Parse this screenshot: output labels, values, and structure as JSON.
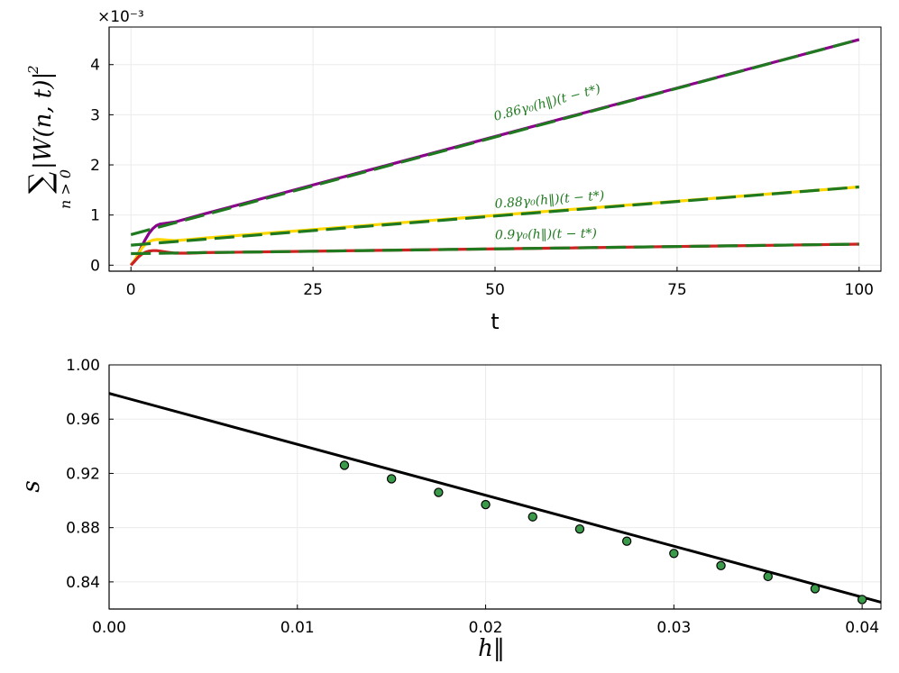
{
  "chart_data": [
    {
      "type": "line",
      "exponent_label": "×10⁻³",
      "xlabel": "t",
      "ylabel_main": "|W(n, t)|",
      "ylabel_sup": "2",
      "ylabel_sum": "∑",
      "ylabel_sub": "n > 0",
      "xlim": [
        -3,
        103
      ],
      "ylim": [
        -0.12,
        4.75
      ],
      "xticks": [
        0,
        25,
        50,
        75,
        100
      ],
      "xtick_labels": [
        "0",
        "25",
        "50",
        "75",
        "100"
      ],
      "yticks": [
        0,
        1,
        2,
        3,
        4
      ],
      "ytick_labels": [
        "0",
        "1",
        "2",
        "3",
        "4"
      ],
      "grid": true,
      "series": [
        {
          "color": "#8b008b",
          "style": "solid",
          "x": [
            0,
            0.5,
            1,
            1.5,
            2,
            2.5,
            3,
            3.5,
            4,
            5,
            6,
            8,
            10,
            100
          ],
          "y": [
            0.0,
            0.08,
            0.22,
            0.38,
            0.52,
            0.64,
            0.73,
            0.79,
            0.82,
            0.84,
            0.86,
            0.94,
            1.02,
            4.5
          ]
        },
        {
          "color": "#ffd700",
          "style": "solid",
          "x": [
            0,
            0.5,
            1,
            1.5,
            2,
            2.5,
            3,
            3.5,
            4,
            5,
            6,
            8,
            10,
            100
          ],
          "y": [
            0.0,
            0.1,
            0.22,
            0.34,
            0.42,
            0.47,
            0.5,
            0.51,
            0.51,
            0.5,
            0.49,
            0.51,
            0.54,
            1.56
          ]
        },
        {
          "color": "#cc2222",
          "style": "solid",
          "x": [
            0,
            0.5,
            1,
            1.5,
            2,
            2.5,
            3,
            3.5,
            4,
            5,
            6,
            7,
            8,
            10,
            100
          ],
          "y": [
            0.0,
            0.08,
            0.16,
            0.22,
            0.26,
            0.28,
            0.29,
            0.29,
            0.28,
            0.26,
            0.24,
            0.24,
            0.24,
            0.25,
            0.42
          ]
        },
        {
          "color": "#1f7a1f",
          "style": "dashed",
          "x": [
            0,
            100
          ],
          "y": [
            0.61,
            4.5
          ]
        },
        {
          "color": "#1f7a1f",
          "style": "dashed",
          "x": [
            0,
            100
          ],
          "y": [
            0.4,
            1.56
          ]
        },
        {
          "color": "#1f7a1f",
          "style": "dashed",
          "x": [
            0,
            100
          ],
          "y": [
            0.23,
            0.42
          ]
        }
      ],
      "annotations": [
        {
          "text": "0.86γ₀(h‖)(t − t*)",
          "x": 50,
          "y": 2.88,
          "angle_deg": -15
        },
        {
          "text": "0.88γ₀(h‖)(t − t*)",
          "x": 50,
          "y": 1.14,
          "angle_deg": -4.5
        },
        {
          "text": "0.9γ₀(h‖)(t − t*)",
          "x": 50,
          "y": 0.52,
          "angle_deg": -1
        }
      ]
    },
    {
      "type": "scatter",
      "xlabel": "h‖",
      "ylabel": "s",
      "xlim": [
        0,
        0.041
      ],
      "ylim": [
        0.82,
        1.0
      ],
      "xticks": [
        0,
        0.01,
        0.02,
        0.03,
        0.04
      ],
      "xtick_labels": [
        "0.00",
        "0.01",
        "0.02",
        "0.03",
        "0.04"
      ],
      "yticks": [
        0.84,
        0.88,
        0.92,
        0.96,
        1.0
      ],
      "ytick_labels": [
        "0.84",
        "0.88",
        "0.92",
        "0.96",
        "1.00"
      ],
      "grid": true,
      "fit_line": {
        "color": "#000000",
        "x": [
          0,
          0.041
        ],
        "y": [
          0.979,
          0.825
        ]
      },
      "points": {
        "color": "#3a9a4a",
        "x": [
          0.0125,
          0.015,
          0.0175,
          0.02,
          0.0225,
          0.025,
          0.0275,
          0.03,
          0.0325,
          0.035,
          0.0375,
          0.04
        ],
        "y": [
          0.926,
          0.916,
          0.906,
          0.897,
          0.888,
          0.879,
          0.87,
          0.861,
          0.852,
          0.844,
          0.835,
          0.827
        ]
      }
    }
  ]
}
